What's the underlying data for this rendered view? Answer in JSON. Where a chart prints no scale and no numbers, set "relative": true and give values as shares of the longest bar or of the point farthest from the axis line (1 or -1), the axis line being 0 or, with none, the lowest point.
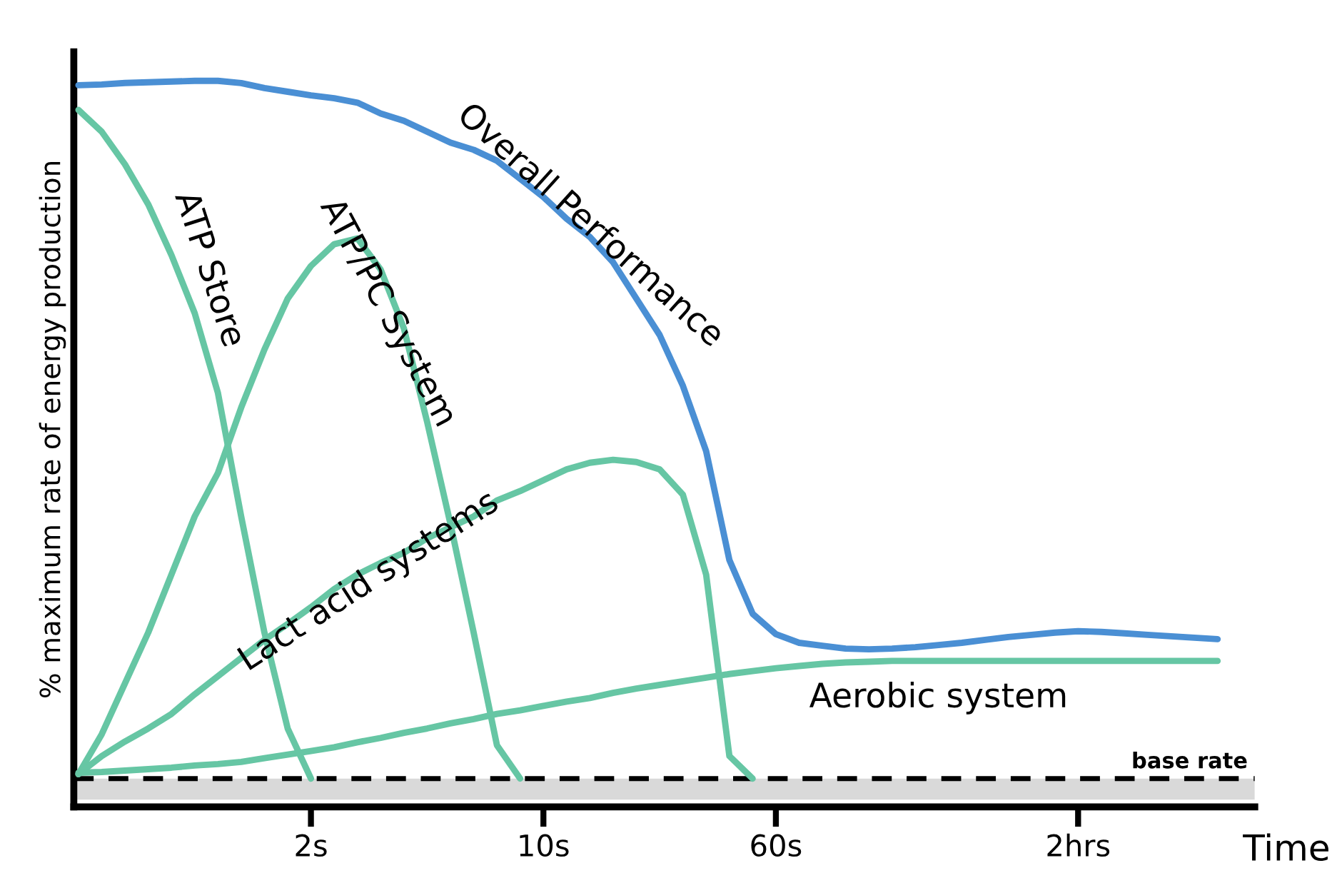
{
  "chart_data": {
    "type": "line",
    "relative": true,
    "xlabel": "Time",
    "ylabel": "% maximum rate of energy production",
    "categories": [
      null,
      null,
      null,
      null,
      null,
      null,
      null,
      null,
      null,
      null,
      "2s",
      null,
      null,
      null,
      null,
      null,
      null,
      null,
      null,
      null,
      "10s",
      null,
      null,
      null,
      null,
      null,
      null,
      null,
      null,
      null,
      "60s",
      null,
      null,
      null,
      null,
      null,
      null,
      null,
      null,
      null,
      null,
      null,
      null,
      "2hrs",
      null,
      null,
      null,
      null,
      null,
      null,
      null
    ],
    "tick_labels": "x",
    "grid": false,
    "legend": false,
    "marker": "none",
    "line_style": "solid",
    "series": [
      {
        "name": "Overall Performance",
        "color": "#4a8fd4",
        "values": [
          0.994,
          0.995,
          0.997,
          0.998,
          0.999,
          1.0,
          1.0,
          0.997,
          0.99,
          0.985,
          0.98,
          0.976,
          0.97,
          0.955,
          0.945,
          0.93,
          0.915,
          0.905,
          0.89,
          0.865,
          0.84,
          0.81,
          0.785,
          0.75,
          0.7,
          0.65,
          0.58,
          0.49,
          0.34,
          0.266,
          0.238,
          0.226,
          0.222,
          0.218,
          0.217,
          0.218,
          0.22,
          0.223,
          0.226,
          0.23,
          0.234,
          0.237,
          0.24,
          0.242,
          0.241,
          0.239,
          0.237,
          0.235,
          0.233,
          0.231,
          null
        ]
      },
      {
        "name": "ATP Store",
        "color": "#66c6a4",
        "values": [
          0.96,
          0.93,
          0.885,
          0.83,
          0.76,
          0.68,
          0.57,
          0.4,
          0.24,
          0.108,
          0.039,
          null,
          null,
          null,
          null,
          null,
          null,
          null,
          null,
          null,
          null,
          null,
          null,
          null,
          null,
          null,
          null,
          null,
          null,
          null,
          null,
          null,
          null,
          null,
          null,
          null,
          null,
          null,
          null,
          null,
          null,
          null,
          null,
          null,
          null,
          null,
          null,
          null,
          null,
          null,
          null
        ]
      },
      {
        "name": "ATP/PC System",
        "color": "#66c6a4",
        "values": [
          0.045,
          0.1,
          0.17,
          0.24,
          0.32,
          0.4,
          0.46,
          0.55,
          0.63,
          0.7,
          0.745,
          0.775,
          0.783,
          0.74,
          0.659,
          0.53,
          0.39,
          0.24,
          0.085,
          0.039,
          null,
          null,
          null,
          null,
          null,
          null,
          null,
          null,
          null,
          null,
          null,
          null,
          null,
          null,
          null,
          null,
          null,
          null,
          null,
          null,
          null,
          null,
          null,
          null,
          null,
          null,
          null,
          null,
          null,
          null,
          null
        ]
      },
      {
        "name": "Lact acid systems",
        "color": "#66c6a4",
        "values": [
          0.045,
          0.07,
          0.09,
          0.108,
          0.128,
          0.155,
          0.18,
          0.205,
          0.23,
          0.252,
          0.275,
          0.3,
          0.32,
          0.336,
          0.35,
          0.37,
          0.385,
          0.4,
          0.422,
          0.435,
          0.45,
          0.465,
          0.474,
          0.478,
          0.475,
          0.465,
          0.43,
          0.32,
          0.07,
          0.039,
          null,
          null,
          null,
          null,
          null,
          null,
          null,
          null,
          null,
          null,
          null,
          null,
          null,
          null,
          null,
          null,
          null,
          null,
          null,
          null,
          null
        ]
      },
      {
        "name": "Aerobic system",
        "color": "#66c6a4",
        "values": [
          0.047,
          0.048,
          0.05,
          0.052,
          0.054,
          0.057,
          0.059,
          0.062,
          0.067,
          0.072,
          0.077,
          0.082,
          0.089,
          0.095,
          0.102,
          0.108,
          0.115,
          0.121,
          0.128,
          0.133,
          0.139,
          0.145,
          0.15,
          0.157,
          0.163,
          0.168,
          0.173,
          0.178,
          0.183,
          0.187,
          0.191,
          0.194,
          0.197,
          0.199,
          0.2,
          0.201,
          0.201,
          0.201,
          0.201,
          0.201,
          0.201,
          0.201,
          0.201,
          0.201,
          0.201,
          0.201,
          0.201,
          0.201,
          0.201,
          0.201,
          null
        ]
      }
    ],
    "ref_lines": [
      {
        "axis": "y",
        "value": 0.039,
        "label": "base rate",
        "color": "#000000",
        "line_style": "dashed"
      }
    ],
    "bands": [
      {
        "axis": "y",
        "from": 0.01,
        "to": 0.039,
        "color": "#d9d9d9"
      }
    ]
  }
}
